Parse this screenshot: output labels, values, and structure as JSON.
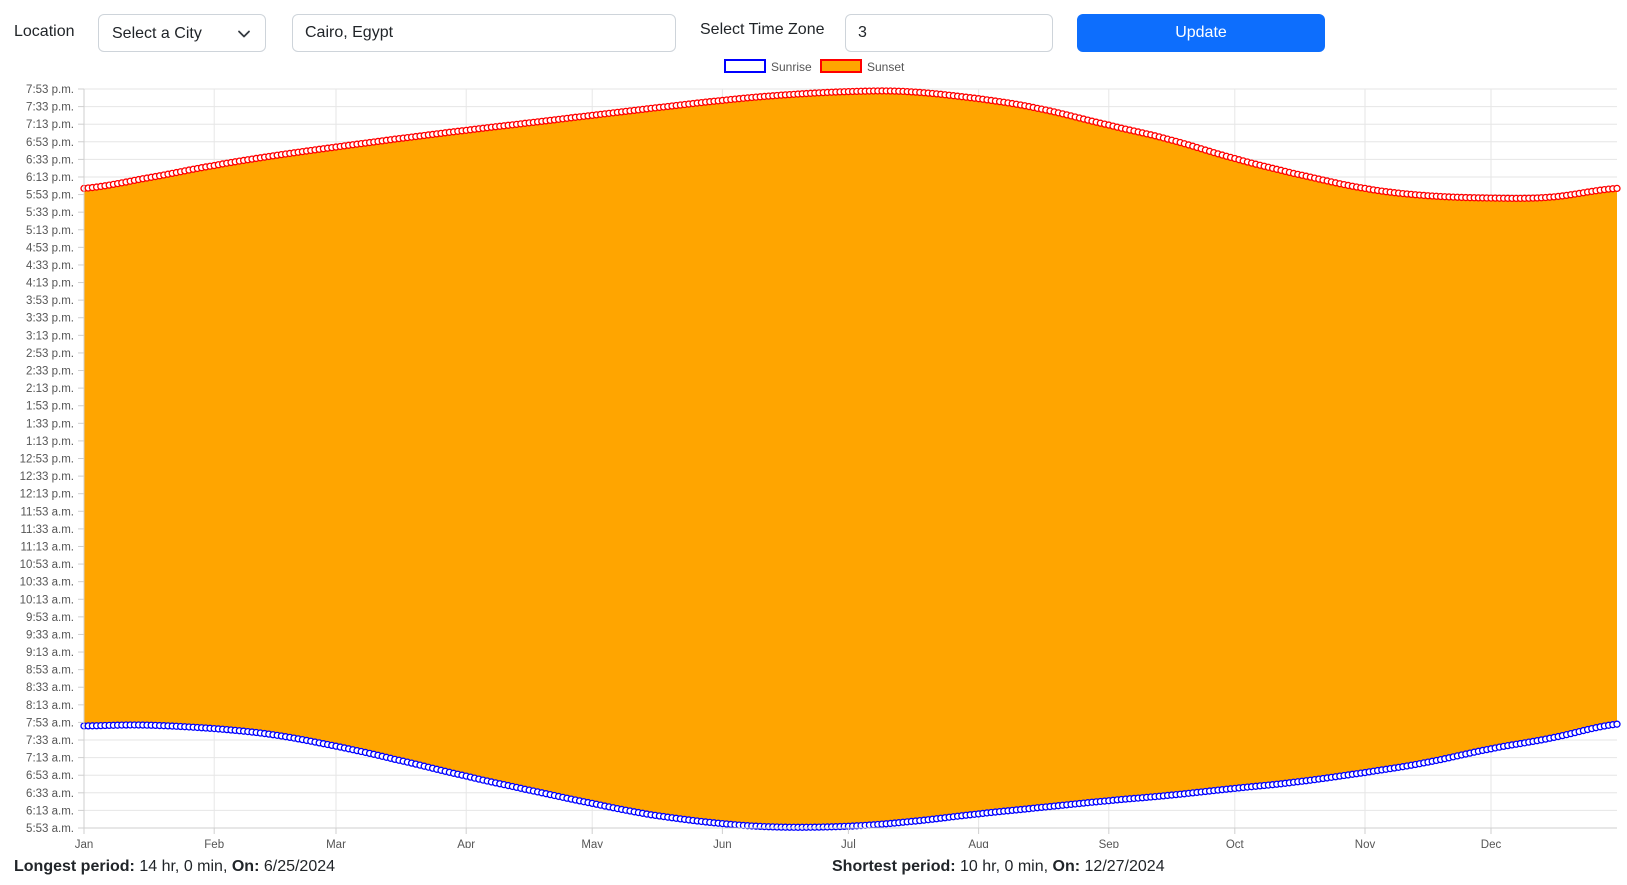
{
  "toolbar": {
    "location_label": "Location",
    "city_select_value": "Select a City",
    "location_value": "Cairo, Egypt",
    "timezone_label": "Select Time Zone",
    "timezone_value": "3",
    "update_label": "Update"
  },
  "footer": {
    "longest_label": "Longest period:",
    "longest_value": "14 hr, 0 min,",
    "longest_on_label": "On:",
    "longest_date": "6/25/2024",
    "shortest_label": "Shortest period:",
    "shortest_value": "10 hr, 0 min,",
    "shortest_on_label": "On:",
    "shortest_date": "12/27/2024"
  },
  "colors": {
    "accent": "#0d6efd",
    "sunrise_line": "#0000ff",
    "sunset_line": "#ff0000",
    "fill": "#ffa500",
    "grid": "#e6e6e6"
  },
  "chart_data": {
    "type": "area",
    "xlabel": "",
    "ylabel": "",
    "x_tick_labels": [
      "Jan",
      "Feb",
      "Mar",
      "Apr",
      "May",
      "Jun",
      "Jul",
      "Aug",
      "Sep",
      "Oct",
      "Nov",
      "Dec"
    ],
    "x_tick_days": [
      1,
      32,
      61,
      92,
      122,
      153,
      183,
      214,
      245,
      275,
      306,
      336
    ],
    "x_range_days": [
      1,
      366
    ],
    "y_tick_labels": [
      "5:53 a.m.",
      "6:13 a.m.",
      "6:33 a.m.",
      "6:53 a.m.",
      "7:13 a.m.",
      "7:33 a.m.",
      "7:53 a.m.",
      "8:13 a.m.",
      "8:33 a.m.",
      "8:53 a.m.",
      "9:13 a.m.",
      "9:33 a.m.",
      "9:53 a.m.",
      "10:13 a.m.",
      "10:33 a.m.",
      "10:53 a.m.",
      "11:13 a.m.",
      "11:33 a.m.",
      "11:53 a.m.",
      "12:13 p.m.",
      "12:33 p.m.",
      "12:53 p.m.",
      "1:13 p.m.",
      "1:33 p.m.",
      "1:53 p.m.",
      "2:13 p.m.",
      "2:33 p.m.",
      "2:53 p.m.",
      "3:13 p.m.",
      "3:33 p.m.",
      "3:53 p.m.",
      "4:13 p.m.",
      "4:33 p.m.",
      "4:53 p.m.",
      "5:13 p.m.",
      "5:33 p.m.",
      "5:53 p.m.",
      "6:13 p.m.",
      "6:33 p.m.",
      "6:53 p.m.",
      "7:13 p.m.",
      "7:33 p.m.",
      "7:53 p.m."
    ],
    "y_range_minutes": [
      353,
      1193
    ],
    "grid": true,
    "legend_position": "top-center",
    "series": [
      {
        "name": "Sunrise",
        "color": "#0000ff",
        "fill": "none",
        "x_day": [
          1,
          15,
          32,
          46,
          61,
          75,
          92,
          106,
          122,
          136,
          153,
          167,
          183,
          197,
          214,
          228,
          245,
          259,
          275,
          289,
          306,
          320,
          336,
          350,
          366
        ],
        "y_minutes": [
          469,
          470,
          466,
          459,
          446,
          431,
          412,
          397,
          381,
          368,
          358,
          354,
          355,
          360,
          369,
          376,
          384,
          390,
          398,
          405,
          416,
          427,
          443,
          455,
          471
        ]
      },
      {
        "name": "Sunset",
        "color": "#ff0000",
        "fill": "#ffa500",
        "x_day": [
          1,
          15,
          32,
          46,
          61,
          75,
          92,
          106,
          122,
          136,
          153,
          167,
          183,
          197,
          214,
          228,
          245,
          259,
          275,
          289,
          306,
          320,
          336,
          350,
          366
        ],
        "y_minutes": [
          1080,
          1091,
          1106,
          1117,
          1127,
          1136,
          1146,
          1154,
          1163,
          1171,
          1180,
          1186,
          1190,
          1190,
          1182,
          1171,
          1152,
          1136,
          1114,
          1097,
          1080,
          1072,
          1069,
          1070,
          1080
        ]
      }
    ]
  }
}
